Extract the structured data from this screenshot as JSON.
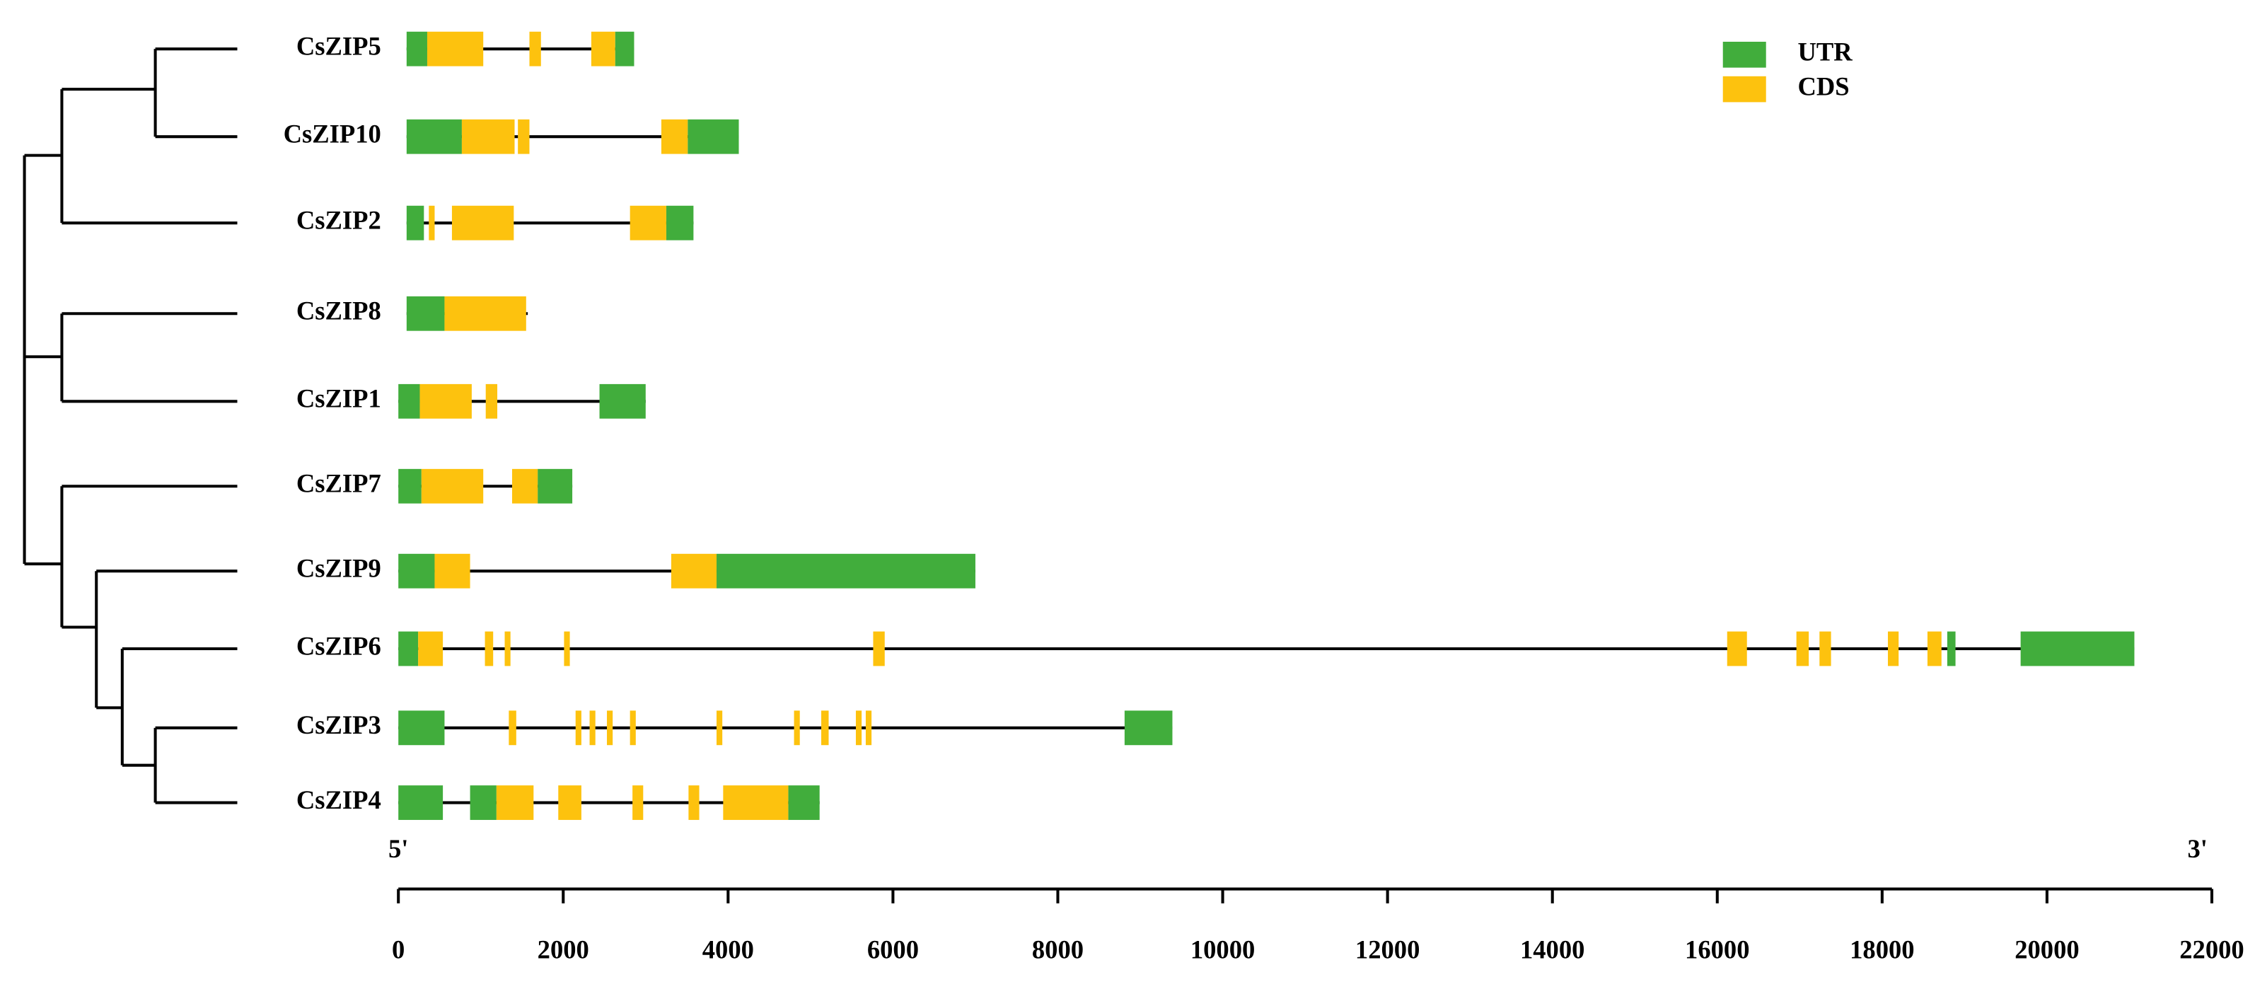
{
  "chart_data": {
    "type": "gene-structure",
    "series": [
      {
        "name": "UTR",
        "color": "#41ad3c"
      },
      {
        "name": "CDS",
        "color": "#fdc20e"
      }
    ],
    "genes": [
      {
        "name": "CsZIP5",
        "span": [
          100,
          2860
        ],
        "regions": [
          [
            [
              100,
              350
            ],
            [
              2630,
              2860
            ]
          ],
          [
            [
              350,
              1030
            ],
            [
              1590,
              1730
            ],
            [
              2340,
              2630
            ]
          ]
        ]
      },
      {
        "name": "CsZIP10",
        "span": [
          100,
          4130
        ],
        "regions": [
          [
            [
              100,
              770
            ],
            [
              3510,
              4130
            ]
          ],
          [
            [
              770,
              1410
            ],
            [
              1450,
              1590
            ],
            [
              3190,
              3510
            ]
          ]
        ]
      },
      {
        "name": "CsZIP2",
        "span": [
          100,
          3580
        ],
        "regions": [
          [
            [
              100,
              310
            ],
            [
              3250,
              3580
            ]
          ],
          [
            [
              370,
              440
            ],
            [
              650,
              1400
            ],
            [
              2810,
              3250
            ]
          ]
        ]
      },
      {
        "name": "CsZIP8",
        "span": [
          100,
          1570
        ],
        "regions": [
          [
            [
              100,
              560
            ]
          ],
          [
            [
              560,
              1550
            ]
          ]
        ]
      },
      {
        "name": "CsZIP1",
        "span": [
          0,
          3000
        ],
        "regions": [
          [
            [
              0,
              260
            ],
            [
              2440,
              3000
            ]
          ],
          [
            [
              260,
              890
            ],
            [
              1060,
              1200
            ]
          ]
        ]
      },
      {
        "name": "CsZIP7",
        "span": [
          0,
          2110
        ],
        "regions": [
          [
            [
              0,
              280
            ],
            [
              1690,
              2110
            ]
          ],
          [
            [
              280,
              1030
            ],
            [
              1380,
              1690
            ]
          ]
        ]
      },
      {
        "name": "CsZIP9",
        "span": [
          0,
          7000
        ],
        "regions": [
          [
            [
              0,
              440
            ],
            [
              3860,
              7000
            ]
          ],
          [
            [
              440,
              870
            ],
            [
              3310,
              3860
            ]
          ]
        ]
      },
      {
        "name": "CsZIP6",
        "span": [
          0,
          21060
        ],
        "regions": [
          [
            [
              0,
              240
            ],
            [
              18790,
              18890
            ],
            [
              19680,
              21060
            ]
          ],
          [
            [
              240,
              540
            ],
            [
              1050,
              1150
            ],
            [
              1290,
              1360
            ],
            [
              2010,
              2080
            ],
            [
              5760,
              5900
            ],
            [
              16120,
              16360
            ],
            [
              16960,
              17110
            ],
            [
              17240,
              17380
            ],
            [
              18070,
              18200
            ],
            [
              18550,
              18720
            ]
          ]
        ]
      },
      {
        "name": "CsZIP3",
        "span": [
          0,
          9390
        ],
        "regions": [
          [
            [
              0,
              560
            ],
            [
              8810,
              9390
            ]
          ],
          [
            [
              1340,
              1430
            ],
            [
              2150,
              2220
            ],
            [
              2320,
              2390
            ],
            [
              2530,
              2600
            ],
            [
              2810,
              2880
            ],
            [
              3860,
              3930
            ],
            [
              4800,
              4870
            ],
            [
              5130,
              5220
            ],
            [
              5550,
              5620
            ],
            [
              5670,
              5740
            ]
          ]
        ]
      },
      {
        "name": "CsZIP4",
        "span": [
          0,
          5110
        ],
        "regions": [
          [
            [
              0,
              540
            ],
            [
              870,
              1190
            ],
            [
              4730,
              5110
            ]
          ],
          [
            [
              1190,
              1640
            ],
            [
              1940,
              2220
            ],
            [
              2840,
              2970
            ],
            [
              3520,
              3650
            ],
            [
              3940,
              4730
            ]
          ]
        ]
      }
    ],
    "five_prime": "5'",
    "three_prime": "3'",
    "xlim": [
      0,
      22000
    ],
    "xticks": [
      0,
      2000,
      4000,
      6000,
      8000,
      10000,
      12000,
      14000,
      16000,
      18000,
      20000,
      22000
    ]
  }
}
